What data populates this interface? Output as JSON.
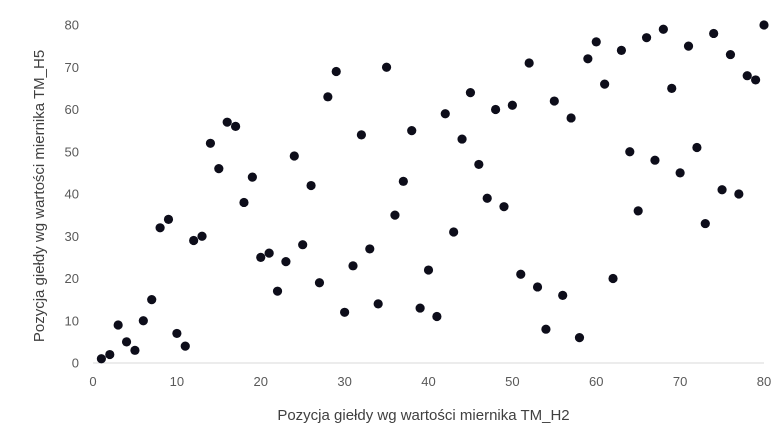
{
  "chart_data": {
    "type": "scatter",
    "title": "",
    "xlabel": "Pozycja giełdy wg wartości miernika TM_H2",
    "ylabel": "Pozycja giełdy wg wartości miernika TM_H5",
    "xlim": [
      0,
      80
    ],
    "ylim": [
      0,
      80
    ],
    "x_ticks": [
      0,
      10,
      20,
      30,
      40,
      50,
      60,
      70,
      80
    ],
    "y_ticks": [
      0,
      10,
      20,
      30,
      40,
      50,
      60,
      70,
      80
    ],
    "grid": false,
    "legend": "none",
    "marker_color": "#0d0d1a",
    "series": [
      {
        "points": [
          [
            1,
            1
          ],
          [
            2,
            2
          ],
          [
            3,
            9
          ],
          [
            4,
            5
          ],
          [
            5,
            3
          ],
          [
            6,
            10
          ],
          [
            7,
            15
          ],
          [
            8,
            32
          ],
          [
            9,
            34
          ],
          [
            10,
            7
          ],
          [
            11,
            4
          ],
          [
            12,
            29
          ],
          [
            13,
            30
          ],
          [
            14,
            52
          ],
          [
            15,
            46
          ],
          [
            16,
            57
          ],
          [
            17,
            56
          ],
          [
            18,
            38
          ],
          [
            19,
            44
          ],
          [
            20,
            25
          ],
          [
            21,
            26
          ],
          [
            22,
            17
          ],
          [
            23,
            24
          ],
          [
            24,
            49
          ],
          [
            25,
            28
          ],
          [
            26,
            42
          ],
          [
            27,
            19
          ],
          [
            28,
            63
          ],
          [
            29,
            69
          ],
          [
            30,
            12
          ],
          [
            31,
            23
          ],
          [
            32,
            54
          ],
          [
            33,
            27
          ],
          [
            34,
            14
          ],
          [
            35,
            70
          ],
          [
            36,
            35
          ],
          [
            37,
            43
          ],
          [
            38,
            55
          ],
          [
            39,
            13
          ],
          [
            40,
            22
          ],
          [
            41,
            11
          ],
          [
            42,
            59
          ],
          [
            43,
            31
          ],
          [
            44,
            53
          ],
          [
            45,
            64
          ],
          [
            46,
            47
          ],
          [
            47,
            39
          ],
          [
            48,
            60
          ],
          [
            49,
            37
          ],
          [
            50,
            61
          ],
          [
            51,
            21
          ],
          [
            52,
            71
          ],
          [
            53,
            18
          ],
          [
            54,
            8
          ],
          [
            55,
            62
          ],
          [
            56,
            16
          ],
          [
            57,
            58
          ],
          [
            58,
            6
          ],
          [
            59,
            72
          ],
          [
            60,
            76
          ],
          [
            61,
            66
          ],
          [
            62,
            20
          ],
          [
            63,
            74
          ],
          [
            64,
            50
          ],
          [
            65,
            36
          ],
          [
            66,
            77
          ],
          [
            67,
            48
          ],
          [
            68,
            79
          ],
          [
            69,
            65
          ],
          [
            70,
            45
          ],
          [
            71,
            75
          ],
          [
            72,
            51
          ],
          [
            73,
            33
          ],
          [
            74,
            78
          ],
          [
            75,
            41
          ],
          [
            76,
            73
          ],
          [
            77,
            40
          ],
          [
            78,
            68
          ],
          [
            79,
            67
          ],
          [
            80,
            80
          ]
        ]
      }
    ]
  }
}
